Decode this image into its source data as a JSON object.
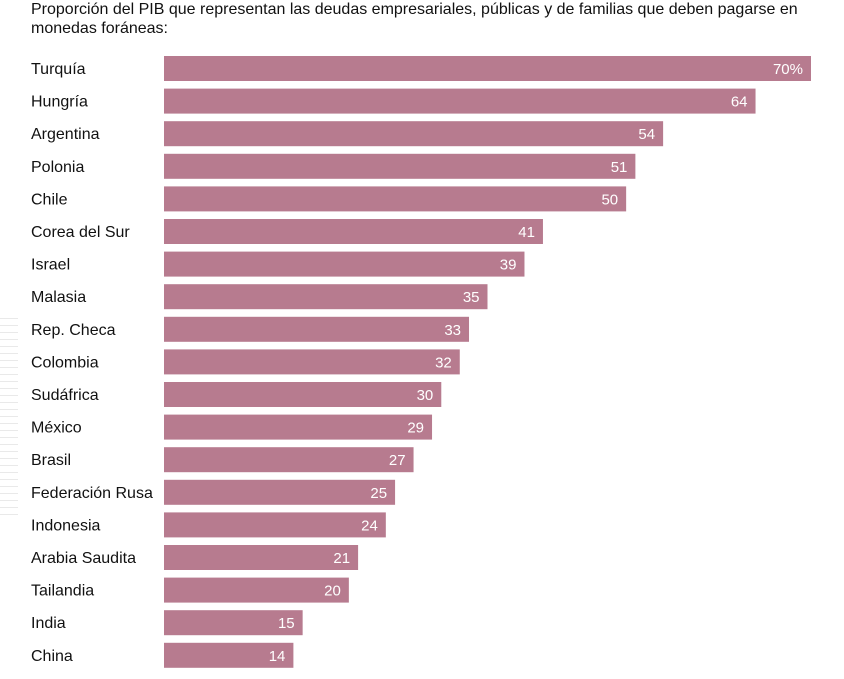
{
  "chart_data": {
    "type": "bar",
    "orientation": "horizontal",
    "title": "Proporción del PIB que representan las deudas empresariales, públicas y de familias que deben pagarse en monedas foráneas:",
    "categories": [
      "Turquía",
      "Hungría",
      "Argentina",
      "Polonia",
      "Chile",
      "Corea del Sur",
      "Israel",
      "Malasia",
      "Rep. Checa",
      "Colombia",
      "Sudáfrica",
      "México",
      "Brasil",
      "Federación Rusa",
      "Indonesia",
      "Arabia Saudita",
      "Tailandia",
      "India",
      "China"
    ],
    "values": [
      70,
      64,
      54,
      51,
      50,
      41,
      39,
      35,
      33,
      32,
      30,
      29,
      27,
      25,
      24,
      21,
      20,
      15,
      14
    ],
    "value_labels": [
      "70%",
      "64",
      "54",
      "51",
      "50",
      "41",
      "39",
      "35",
      "33",
      "32",
      "30",
      "29",
      "27",
      "25",
      "24",
      "21",
      "20",
      "15",
      "14"
    ],
    "xlim": [
      0,
      70
    ],
    "bar_color": "#b77b8f",
    "grid": false,
    "legend": "none"
  }
}
